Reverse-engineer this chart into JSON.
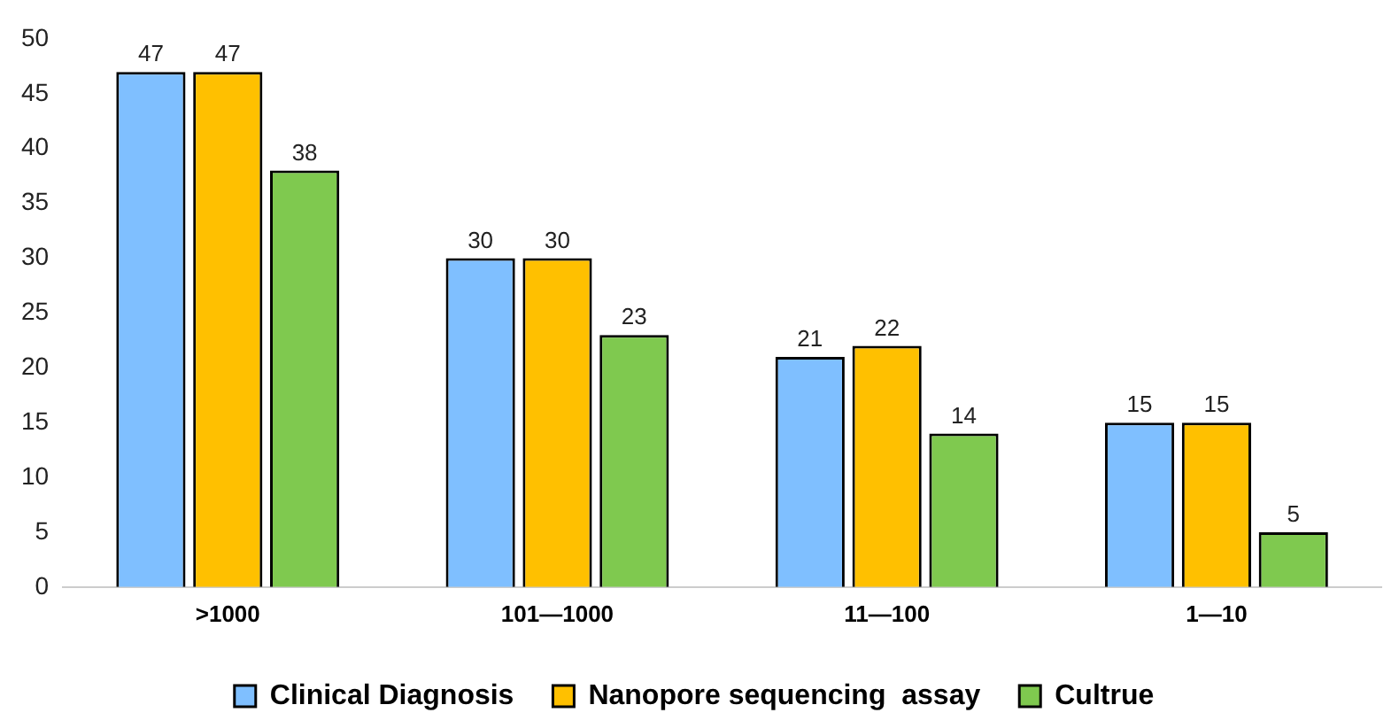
{
  "chart_data": {
    "type": "bar",
    "categories": [
      ">1000",
      "101—1000",
      "11—100",
      "1—10"
    ],
    "series": [
      {
        "name": "Clinical Diagnosis",
        "color": "#7fbfff",
        "values": [
          47,
          30,
          21,
          15
        ]
      },
      {
        "name": "Nanopore sequencing  assay",
        "color": "#ffc000",
        "values": [
          47,
          30,
          22,
          15
        ]
      },
      {
        "name": "Cultrue",
        "color": "#7fc94f",
        "values": [
          38,
          23,
          14,
          5
        ]
      }
    ],
    "ylim": [
      0,
      50
    ],
    "yticks": [
      0,
      5,
      10,
      15,
      20,
      25,
      30,
      35,
      40,
      45,
      50
    ],
    "grid": false,
    "legend": "bottom",
    "data_labels": true
  }
}
